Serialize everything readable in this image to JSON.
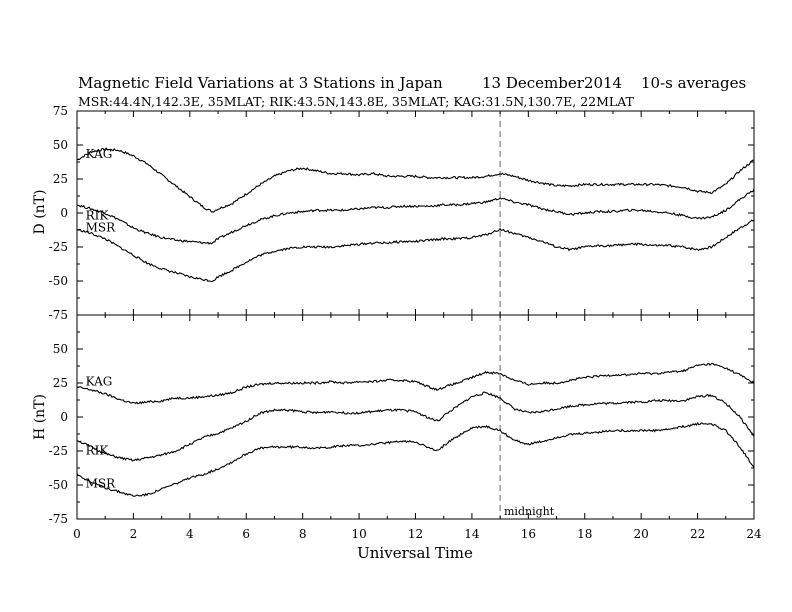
{
  "header": {
    "title": "Magnetic Field Variations at 3 Stations in Japan",
    "date": "13 December2014",
    "averaging": "10-s averages",
    "subtitle": "MSR:44.4N,142.3E, 35MLAT;  RIK:43.5N,143.8E, 35MLAT;  KAG:31.5N,130.7E, 22MLAT"
  },
  "midnight_label": "midnight",
  "chart_data": [
    {
      "type": "line",
      "ylabel": "D (nT)",
      "xlabel": "",
      "xlim": [
        0,
        24
      ],
      "ylim": [
        -75,
        75
      ],
      "yticks": [
        -75,
        -50,
        -25,
        0,
        25,
        50,
        75
      ],
      "xticks": [
        0,
        2,
        4,
        6,
        8,
        10,
        12,
        14,
        16,
        18,
        20,
        22,
        24
      ],
      "midnight_ut": 15,
      "series": [
        {
          "name": "KAG",
          "label_x": 0.2,
          "label_y": 44,
          "x": [
            0,
            0.5,
            1,
            1.5,
            2,
            2.5,
            3,
            3.5,
            4,
            4.5,
            4.8,
            5,
            5.5,
            6,
            6.5,
            7,
            7.5,
            8,
            8.5,
            9,
            9.5,
            10,
            10.5,
            11,
            11.5,
            12,
            12.5,
            13,
            13.5,
            14,
            14.5,
            15,
            15.5,
            16,
            16.5,
            17,
            17.5,
            18,
            18.5,
            19,
            19.5,
            20,
            20.5,
            21,
            21.5,
            22,
            22.5,
            23,
            23.5,
            24
          ],
          "y": [
            39,
            45,
            47,
            46,
            42,
            36,
            28,
            20,
            12,
            4,
            1,
            3,
            7,
            14,
            21,
            27,
            31,
            33,
            31,
            29,
            29,
            28,
            29,
            27,
            27,
            27,
            26,
            26,
            26,
            26,
            27,
            29,
            27,
            24,
            22,
            20,
            20,
            21,
            21,
            21,
            21,
            21,
            21,
            20,
            19,
            16,
            15,
            21,
            31,
            39
          ]
        },
        {
          "name": "RIK",
          "label_x": 0.2,
          "label_y": -1,
          "x": [
            0,
            0.5,
            1,
            1.5,
            2,
            2.5,
            3,
            3.5,
            4,
            4.5,
            4.8,
            5,
            5.5,
            6,
            6.5,
            7,
            7.5,
            8,
            8.5,
            9,
            9.5,
            10,
            10.5,
            11,
            11.5,
            12,
            12.5,
            13,
            13.5,
            14,
            14.5,
            15,
            15.5,
            16,
            16.5,
            17,
            17.5,
            18,
            18.5,
            19,
            19.5,
            20,
            20.5,
            21,
            21.5,
            22,
            22.5,
            23,
            23.5,
            24
          ],
          "y": [
            6,
            3,
            0,
            -5,
            -11,
            -15,
            -18,
            -20,
            -21,
            -22,
            -22,
            -19,
            -14,
            -9,
            -5,
            -2,
            0,
            1,
            2,
            2,
            2,
            3,
            4,
            4,
            5,
            5,
            5,
            6,
            6,
            7,
            8,
            11,
            8,
            6,
            3,
            1,
            -1,
            0,
            1,
            1,
            2,
            2,
            1,
            0,
            -2,
            -4,
            -3,
            2,
            10,
            17
          ]
        },
        {
          "name": "MSR",
          "label_x": 0.2,
          "label_y": -10,
          "x": [
            0,
            0.5,
            1,
            1.5,
            2,
            2.5,
            3,
            3.5,
            4,
            4.5,
            4.8,
            5,
            5.5,
            6,
            6.5,
            7,
            7.5,
            8,
            8.5,
            9,
            9.5,
            10,
            10.5,
            11,
            11.5,
            12,
            12.5,
            13,
            13.5,
            14,
            14.5,
            15,
            15.5,
            16,
            16.5,
            17,
            17.5,
            18,
            18.5,
            19,
            19.5,
            20,
            20.5,
            21,
            21.5,
            22,
            22.5,
            23,
            23.5,
            24
          ],
          "y": [
            -12,
            -15,
            -19,
            -25,
            -31,
            -37,
            -41,
            -44,
            -47,
            -49,
            -50,
            -47,
            -42,
            -36,
            -31,
            -28,
            -26,
            -25,
            -25,
            -25,
            -24,
            -23,
            -22,
            -22,
            -21,
            -21,
            -20,
            -19,
            -19,
            -18,
            -16,
            -12,
            -15,
            -18,
            -21,
            -25,
            -27,
            -25,
            -24,
            -24,
            -23,
            -23,
            -24,
            -24,
            -25,
            -27,
            -25,
            -18,
            -11,
            -5
          ]
        }
      ]
    },
    {
      "type": "line",
      "ylabel": "H (nT)",
      "xlabel": "Universal Time",
      "xlim": [
        0,
        24
      ],
      "ylim": [
        -75,
        75
      ],
      "yticks": [
        -75,
        -50,
        -25,
        0,
        25,
        50
      ],
      "xticks": [
        0,
        2,
        4,
        6,
        8,
        10,
        12,
        14,
        16,
        18,
        20,
        22,
        24
      ],
      "midnight_ut": 15,
      "series": [
        {
          "name": "KAG",
          "label_x": 0.2,
          "label_y": 27,
          "x": [
            0,
            0.5,
            1,
            1.5,
            2,
            2.5,
            3,
            3.5,
            4,
            4.5,
            5,
            5.5,
            6,
            6.5,
            7,
            7.5,
            8,
            8.5,
            9,
            9.5,
            10,
            10.5,
            11,
            11.5,
            12,
            12.5,
            12.8,
            13,
            13.5,
            14,
            14.5,
            15,
            15.5,
            16,
            16.5,
            17,
            17.5,
            18,
            18.5,
            19,
            19.5,
            20,
            20.5,
            21,
            21.5,
            22,
            22.5,
            23,
            23.5,
            24
          ],
          "y": [
            22,
            20,
            17,
            13,
            10,
            11,
            12,
            14,
            14,
            15,
            16,
            18,
            22,
            24,
            25,
            25,
            25,
            25,
            26,
            25,
            26,
            26,
            27,
            27,
            26,
            22,
            20,
            22,
            25,
            29,
            33,
            32,
            27,
            24,
            25,
            25,
            27,
            29,
            30,
            31,
            31,
            32,
            32,
            33,
            34,
            38,
            39,
            36,
            31,
            25
          ]
        },
        {
          "name": "RIK",
          "label_x": 0.2,
          "label_y": -24,
          "x": [
            0,
            0.5,
            1,
            1.5,
            2,
            2.5,
            3,
            3.5,
            4,
            4.5,
            5,
            5.5,
            6,
            6.5,
            7,
            7.5,
            8,
            8.5,
            9,
            9.5,
            10,
            10.5,
            11,
            11.5,
            12,
            12.5,
            12.8,
            13,
            13.5,
            14,
            14.5,
            15,
            15.5,
            16,
            16.5,
            17,
            17.5,
            18,
            18.5,
            19,
            19.5,
            20,
            20.5,
            21,
            21.5,
            22,
            22.5,
            23,
            23.5,
            24
          ],
          "y": [
            -17,
            -22,
            -27,
            -30,
            -32,
            -30,
            -28,
            -25,
            -20,
            -15,
            -12,
            -8,
            -3,
            3,
            5,
            5,
            4,
            3,
            4,
            3,
            3,
            4,
            5,
            5,
            4,
            -1,
            -3,
            1,
            8,
            15,
            18,
            14,
            6,
            3,
            4,
            6,
            8,
            9,
            10,
            10,
            11,
            11,
            12,
            12,
            12,
            15,
            16,
            10,
            0,
            -14
          ]
        },
        {
          "name": "MSR",
          "label_x": 0.2,
          "label_y": -48,
          "x": [
            0,
            0.5,
            1,
            1.5,
            2,
            2.5,
            3,
            3.5,
            4,
            4.5,
            5,
            5.5,
            6,
            6.5,
            7,
            7.5,
            8,
            8.5,
            9,
            9.5,
            10,
            10.5,
            11,
            11.5,
            12,
            12.5,
            12.8,
            13,
            13.5,
            14,
            14.5,
            15,
            15.5,
            16,
            16.5,
            17,
            17.5,
            18,
            18.5,
            19,
            19.5,
            20,
            20.5,
            21,
            21.5,
            22,
            22.5,
            23,
            23.5,
            24
          ],
          "y": [
            -42,
            -48,
            -52,
            -55,
            -58,
            -57,
            -53,
            -49,
            -45,
            -42,
            -38,
            -33,
            -27,
            -23,
            -22,
            -22,
            -22,
            -23,
            -22,
            -21,
            -21,
            -20,
            -19,
            -18,
            -18,
            -23,
            -25,
            -21,
            -14,
            -8,
            -7,
            -10,
            -17,
            -20,
            -18,
            -15,
            -13,
            -12,
            -11,
            -10,
            -10,
            -10,
            -10,
            -9,
            -7,
            -5,
            -5,
            -10,
            -22,
            -37
          ]
        }
      ]
    }
  ]
}
